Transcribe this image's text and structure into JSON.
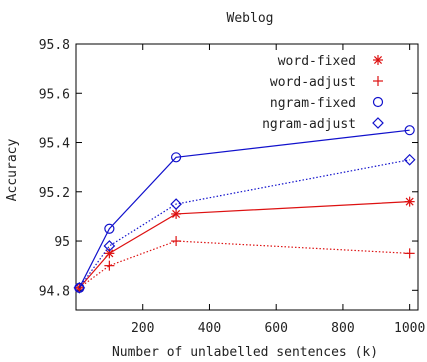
{
  "chart_data": {
    "type": "line",
    "title": "Weblog",
    "xlabel": "Number of unlabelled sentences (k)",
    "ylabel": "Accuracy",
    "xlim": [
      0,
      1025
    ],
    "ylim": [
      94.72,
      95.8
    ],
    "xticks": [
      200,
      400,
      600,
      800,
      1000
    ],
    "yticks": [
      94.8,
      95.0,
      95.2,
      95.4,
      95.6,
      95.8
    ],
    "ytick_labels": [
      "94.8",
      "95",
      "95.2",
      "95.4",
      "95.6",
      "95.8"
    ],
    "grid": false,
    "legend_position": "top-right",
    "x": [
      10,
      100,
      300,
      1000
    ],
    "series": [
      {
        "name": "word-fixed",
        "values": [
          94.81,
          94.95,
          95.11,
          95.16
        ],
        "color": "#dd1111",
        "marker": "asterisk",
        "dash": "solid"
      },
      {
        "name": "word-adjust",
        "values": [
          94.81,
          94.9,
          95.0,
          94.95
        ],
        "color": "#dd1111",
        "marker": "plus",
        "dash": "dotted"
      },
      {
        "name": "ngram-fixed",
        "values": [
          94.81,
          95.05,
          95.34,
          95.45
        ],
        "color": "#1111cc",
        "marker": "circle",
        "dash": "solid"
      },
      {
        "name": "ngram-adjust",
        "values": [
          94.81,
          94.98,
          95.15,
          95.33
        ],
        "color": "#1111cc",
        "marker": "diamond",
        "dash": "dotted"
      }
    ]
  }
}
